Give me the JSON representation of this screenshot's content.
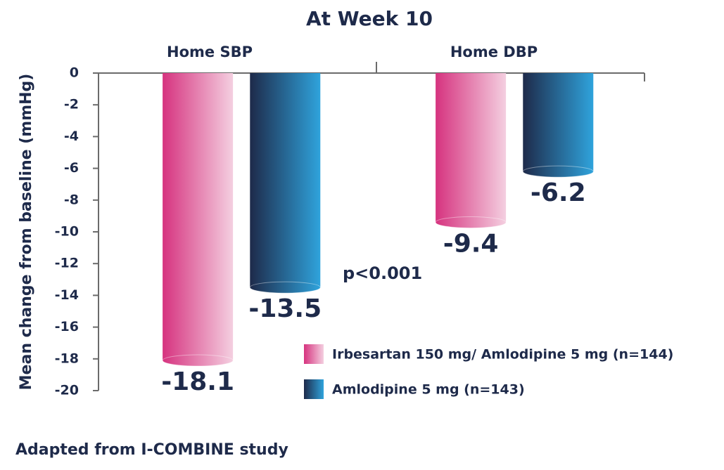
{
  "chart_data": {
    "type": "bar",
    "title": "At Week 10",
    "y_label": "Mean change from baseline (mmHg)",
    "categories": [
      "Home SBP",
      "Home DBP"
    ],
    "series": [
      {
        "name": "Irbesartan 150 mg/ Amlodipine 5 mg (n=144)",
        "color": "#d6337f",
        "values": [
          -18.1,
          -9.4
        ]
      },
      {
        "name": "Amlodipine 5 mg (n=143)",
        "color": "#1e2a4a",
        "values": [
          -13.5,
          -6.2
        ]
      }
    ],
    "ylim": [
      -20,
      0
    ],
    "yticks": [
      0,
      -2,
      -4,
      -6,
      -8,
      -10,
      -12,
      -14,
      -16,
      -18,
      -20
    ],
    "annotation": "p<0.001",
    "legend": "lower right",
    "footnote": "Adapted from I-COMBINE study"
  }
}
